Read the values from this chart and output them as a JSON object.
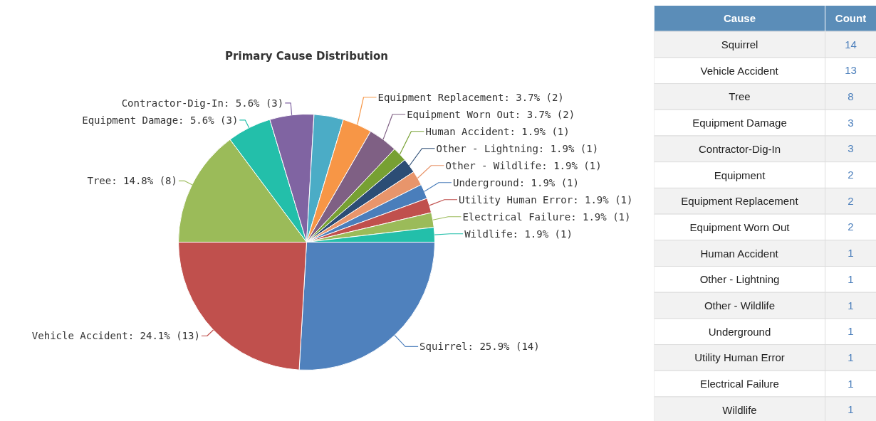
{
  "chart_data": [
    {
      "type": "pie",
      "title": "Primary Cause Distribution",
      "categories": [
        "Squirrel",
        "Vehicle Accident",
        "Tree",
        "Equipment Damage",
        "Contractor-Dig-In",
        null,
        "Equipment Replacement",
        "Equipment Worn Out",
        "Human Accident",
        "Other - Lightning",
        "Other - Wildlife",
        "Underground",
        "Utility Human Error",
        "Electrical Failure",
        "Wildlife"
      ],
      "values": [
        14,
        13,
        8,
        3,
        3,
        2,
        2,
        2,
        1,
        1,
        1,
        1,
        1,
        1,
        1
      ],
      "colors": [
        "#4f81bd",
        "#c0504d",
        "#9bbb59",
        "#23bfaa",
        "#8064a2",
        "#4bacc6",
        "#f79646",
        "#7f6084",
        "#77a033",
        "#2c4d75",
        "#e8956b",
        "#4a7ebb",
        "#c0504d",
        "#9bbb59",
        "#23bfaa"
      ],
      "value_labels": [
        ": 25.9% (14)",
        ": 24.1% (13)",
        ": 14.8% (8)",
        ": 5.6% (3)",
        ": 5.6% (3)",
        null,
        ": 3.7% (2)",
        ": 3.7% (2)",
        ": 1.9% (1)",
        ": 1.9% (1)",
        ": 1.9% (1)",
        ": 1.9% (1)",
        ": 1.9% (1)",
        ": 1.9% (1)",
        ": 1.9% (1)"
      ]
    },
    {
      "type": "other",
      "annotations": [
        "Cause",
        "Count"
      ],
      "categories": [
        "Squirrel",
        "Vehicle Accident",
        "Tree",
        "Equipment Damage",
        "Contractor-Dig-In",
        "Equipment",
        "Equipment Replacement",
        "Equipment Worn Out",
        "Human Accident",
        "Other - Lightning",
        "Other - Wildlife",
        "Underground",
        "Utility Human Error",
        "Electrical Failure",
        "Wildlife"
      ],
      "values": [
        14,
        13,
        8,
        3,
        3,
        2,
        2,
        2,
        1,
        1,
        1,
        1,
        1,
        1,
        1
      ],
      "data_labels": true
    }
  ]
}
